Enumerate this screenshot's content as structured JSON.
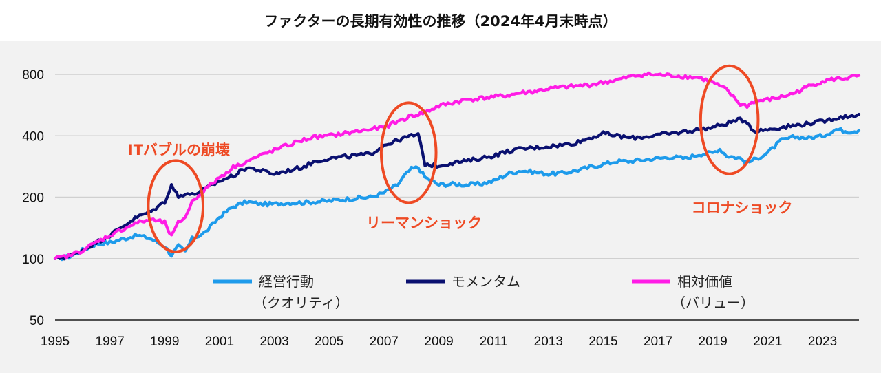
{
  "chart_data": {
    "type": "line",
    "title": "ファクターの長期有効性の推移（2024年4月末時点）",
    "yscale": "log",
    "ylim": [
      50,
      900
    ],
    "yticks": [
      50,
      100,
      200,
      400,
      800
    ],
    "xlim": [
      1995,
      2024.33
    ],
    "xticks": [
      "1995",
      "1997",
      "1999",
      "2001",
      "2003",
      "2005",
      "2007",
      "2009",
      "2011",
      "2013",
      "2015",
      "2017",
      "2019",
      "2021",
      "2023"
    ],
    "grid": "horizontal",
    "legend_position": "inside-bottom",
    "series": [
      {
        "name": "経営行動",
        "name_line2": "（クオリティ）",
        "color": "#1E9BEB",
        "points": [
          [
            1995,
            100
          ],
          [
            1995.5,
            102
          ],
          [
            1996,
            110
          ],
          [
            1996.5,
            118
          ],
          [
            1997,
            120
          ],
          [
            1997.5,
            125
          ],
          [
            1998,
            130
          ],
          [
            1998.5,
            125
          ],
          [
            1999,
            115
          ],
          [
            1999.25,
            104
          ],
          [
            1999.5,
            115
          ],
          [
            1999.75,
            108
          ],
          [
            2000,
            125
          ],
          [
            2000.5,
            135
          ],
          [
            2001,
            160
          ],
          [
            2001.5,
            180
          ],
          [
            2002,
            190
          ],
          [
            2002.5,
            185
          ],
          [
            2003,
            185
          ],
          [
            2003.5,
            188
          ],
          [
            2004,
            188
          ],
          [
            2004.5,
            190
          ],
          [
            2005,
            192
          ],
          [
            2005.5,
            195
          ],
          [
            2006,
            198
          ],
          [
            2006.5,
            200
          ],
          [
            2007,
            210
          ],
          [
            2007.5,
            230
          ],
          [
            2007.75,
            255
          ],
          [
            2008,
            275
          ],
          [
            2008.25,
            280
          ],
          [
            2008.5,
            250
          ],
          [
            2009,
            230
          ],
          [
            2009.5,
            232
          ],
          [
            2010,
            230
          ],
          [
            2010.5,
            232
          ],
          [
            2011,
            240
          ],
          [
            2011.5,
            260
          ],
          [
            2012,
            270
          ],
          [
            2012.5,
            265
          ],
          [
            2013,
            260
          ],
          [
            2013.5,
            262
          ],
          [
            2014,
            270
          ],
          [
            2014.5,
            280
          ],
          [
            2015,
            290
          ],
          [
            2015.5,
            300
          ],
          [
            2016,
            300
          ],
          [
            2016.5,
            305
          ],
          [
            2017,
            310
          ],
          [
            2017.5,
            315
          ],
          [
            2018,
            310
          ],
          [
            2018.5,
            325
          ],
          [
            2019,
            330
          ],
          [
            2019.25,
            345
          ],
          [
            2019.5,
            320
          ],
          [
            2020,
            310
          ],
          [
            2020.25,
            295
          ],
          [
            2020.5,
            305
          ],
          [
            2021,
            330
          ],
          [
            2021.5,
            380
          ],
          [
            2022,
            395
          ],
          [
            2022.5,
            390
          ],
          [
            2023,
            400
          ],
          [
            2023.5,
            430
          ],
          [
            2024,
            420
          ],
          [
            2024.33,
            425
          ]
        ]
      },
      {
        "name": "モメンタム",
        "color": "#0A1070",
        "points": [
          [
            1995,
            100
          ],
          [
            1995.5,
            102
          ],
          [
            1996,
            110
          ],
          [
            1996.5,
            120
          ],
          [
            1997,
            130
          ],
          [
            1997.5,
            145
          ],
          [
            1998,
            160
          ],
          [
            1998.5,
            170
          ],
          [
            1999,
            190
          ],
          [
            1999.25,
            230
          ],
          [
            1999.5,
            200
          ],
          [
            1999.75,
            210
          ],
          [
            2000,
            205
          ],
          [
            2000.5,
            220
          ],
          [
            2001,
            240
          ],
          [
            2001.5,
            255
          ],
          [
            2002,
            280
          ],
          [
            2002.5,
            270
          ],
          [
            2003,
            260
          ],
          [
            2003.5,
            270
          ],
          [
            2004,
            280
          ],
          [
            2004.5,
            300
          ],
          [
            2005,
            310
          ],
          [
            2005.5,
            315
          ],
          [
            2006,
            320
          ],
          [
            2006.5,
            325
          ],
          [
            2007,
            360
          ],
          [
            2007.5,
            380
          ],
          [
            2008,
            400
          ],
          [
            2008.25,
            405
          ],
          [
            2008.5,
            290
          ],
          [
            2009,
            285
          ],
          [
            2009.5,
            295
          ],
          [
            2010,
            300
          ],
          [
            2010.5,
            310
          ],
          [
            2011,
            320
          ],
          [
            2011.5,
            335
          ],
          [
            2012,
            345
          ],
          [
            2012.5,
            350
          ],
          [
            2013,
            355
          ],
          [
            2013.5,
            360
          ],
          [
            2014,
            370
          ],
          [
            2014.5,
            390
          ],
          [
            2015,
            410
          ],
          [
            2015.5,
            400
          ],
          [
            2016,
            390
          ],
          [
            2016.5,
            395
          ],
          [
            2017,
            405
          ],
          [
            2017.5,
            410
          ],
          [
            2018,
            420
          ],
          [
            2018.5,
            430
          ],
          [
            2019,
            440
          ],
          [
            2019.5,
            460
          ],
          [
            2020,
            480
          ],
          [
            2020.25,
            470
          ],
          [
            2020.5,
            420
          ],
          [
            2021,
            430
          ],
          [
            2021.5,
            440
          ],
          [
            2022,
            450
          ],
          [
            2022.5,
            460
          ],
          [
            2023,
            470
          ],
          [
            2023.5,
            490
          ],
          [
            2024,
            500
          ],
          [
            2024.33,
            510
          ]
        ]
      },
      {
        "name": "相対価値",
        "name_line2": "（バリュー）",
        "color": "#FF1CE6",
        "points": [
          [
            1995,
            100
          ],
          [
            1995.5,
            103
          ],
          [
            1996,
            110
          ],
          [
            1996.5,
            120
          ],
          [
            1997,
            130
          ],
          [
            1997.5,
            140
          ],
          [
            1998,
            150
          ],
          [
            1998.5,
            155
          ],
          [
            1999,
            150
          ],
          [
            1999.25,
            128
          ],
          [
            1999.5,
            150
          ],
          [
            1999.75,
            160
          ],
          [
            2000,
            190
          ],
          [
            2000.5,
            220
          ],
          [
            2001,
            250
          ],
          [
            2001.5,
            280
          ],
          [
            2002,
            300
          ],
          [
            2002.5,
            320
          ],
          [
            2003,
            340
          ],
          [
            2003.5,
            360
          ],
          [
            2004,
            380
          ],
          [
            2004.5,
            395
          ],
          [
            2005,
            400
          ],
          [
            2005.5,
            410
          ],
          [
            2006,
            420
          ],
          [
            2006.5,
            430
          ],
          [
            2007,
            440
          ],
          [
            2007.5,
            470
          ],
          [
            2008,
            500
          ],
          [
            2008.5,
            520
          ],
          [
            2009,
            560
          ],
          [
            2009.5,
            580
          ],
          [
            2010,
            600
          ],
          [
            2010.5,
            610
          ],
          [
            2011,
            620
          ],
          [
            2011.5,
            630
          ],
          [
            2012,
            650
          ],
          [
            2012.5,
            660
          ],
          [
            2013,
            680
          ],
          [
            2013.5,
            690
          ],
          [
            2014,
            700
          ],
          [
            2014.5,
            710
          ],
          [
            2015,
            730
          ],
          [
            2015.5,
            750
          ],
          [
            2016,
            780
          ],
          [
            2016.5,
            800
          ],
          [
            2017,
            795
          ],
          [
            2017.5,
            790
          ],
          [
            2018,
            780
          ],
          [
            2018.5,
            770
          ],
          [
            2019,
            730
          ],
          [
            2019.5,
            670
          ],
          [
            2020,
            570
          ],
          [
            2020.25,
            560
          ],
          [
            2020.5,
            590
          ],
          [
            2021,
            600
          ],
          [
            2021.5,
            620
          ],
          [
            2022,
            650
          ],
          [
            2022.5,
            700
          ],
          [
            2023,
            740
          ],
          [
            2023.5,
            760
          ],
          [
            2024,
            770
          ],
          [
            2024.33,
            790
          ]
        ]
      }
    ],
    "annotations": [
      {
        "label": "ITバブルの崩壊",
        "color": "#EE4A24",
        "ellipse_center": [
          1999.4,
          180
        ],
        "ellipse_radii_years": 1.0,
        "ellipse_y_range": [
          108,
          302
        ]
      },
      {
        "label": "リーマンショック",
        "color": "#EE4A24",
        "ellipse_center": [
          2007.9,
          320
        ],
        "ellipse_radii_years": 1.0,
        "ellipse_y_range": [
          188,
          580
        ]
      },
      {
        "label": "コロナショック",
        "color": "#EE4A24",
        "ellipse_center": [
          2019.6,
          470
        ],
        "ellipse_radii_years": 1.05,
        "ellipse_y_range": [
          260,
          880
        ]
      }
    ]
  },
  "ui": {
    "background_color": "#F2F2F2",
    "annotation_color": "#EE4A24"
  }
}
